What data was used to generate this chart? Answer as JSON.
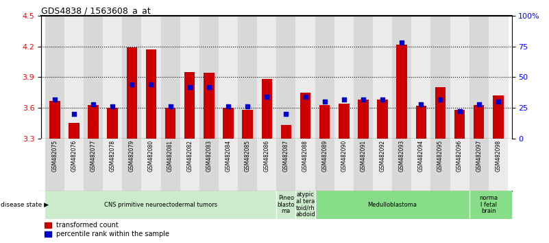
{
  "title": "GDS4838 / 1563608_a_at",
  "samples": [
    "GSM482075",
    "GSM482076",
    "GSM482077",
    "GSM482078",
    "GSM482079",
    "GSM482080",
    "GSM482081",
    "GSM482082",
    "GSM482083",
    "GSM482084",
    "GSM482085",
    "GSM482086",
    "GSM482087",
    "GSM482088",
    "GSM482089",
    "GSM482090",
    "GSM482091",
    "GSM482092",
    "GSM482093",
    "GSM482094",
    "GSM482095",
    "GSM482096",
    "GSM482097",
    "GSM482098"
  ],
  "transformed_count": [
    3.67,
    3.45,
    3.63,
    3.6,
    4.19,
    4.17,
    3.6,
    3.95,
    3.94,
    3.6,
    3.58,
    3.88,
    3.43,
    3.75,
    3.63,
    3.64,
    3.68,
    3.68,
    4.22,
    3.62,
    3.8,
    3.58,
    3.63,
    3.72
  ],
  "percentile_rank": [
    32,
    20,
    28,
    26,
    44,
    44,
    26,
    42,
    42,
    26,
    26,
    34,
    20,
    34,
    30,
    32,
    32,
    32,
    78,
    28,
    32,
    22,
    28,
    30
  ],
  "ylim_left": [
    3.3,
    4.5
  ],
  "ylim_right": [
    0,
    100
  ],
  "yticks_left": [
    3.3,
    3.6,
    3.9,
    4.2,
    4.5
  ],
  "yticks_right": [
    0,
    25,
    50,
    75,
    100
  ],
  "ytick_labels_right": [
    "0",
    "25",
    "50",
    "75",
    "100%"
  ],
  "bar_color": "#cc0000",
  "dot_color": "#0000cc",
  "bar_width": 0.55,
  "col_bg_even": "#d8d8d8",
  "col_bg_odd": "#ebebeb",
  "disease_groups": [
    {
      "label": "CNS primitive neuroectodermal tumors",
      "start": 0,
      "end": 11,
      "light": true
    },
    {
      "label": "Pineo\nblasto\nma",
      "start": 12,
      "end": 12,
      "light": true
    },
    {
      "label": "atypic\nal tera\ntoid/rh\nabdoid",
      "start": 13,
      "end": 13,
      "light": true
    },
    {
      "label": "Medulloblastoma",
      "start": 14,
      "end": 21,
      "light": false
    },
    {
      "label": "norma\nl fetal\nbrain",
      "start": 22,
      "end": 23,
      "light": false
    }
  ],
  "disease_label": "disease state",
  "legend_bar": "transformed count",
  "legend_dot": "percentile rank within the sample",
  "light_green": "#cceacc",
  "medium_green": "#88dd88"
}
